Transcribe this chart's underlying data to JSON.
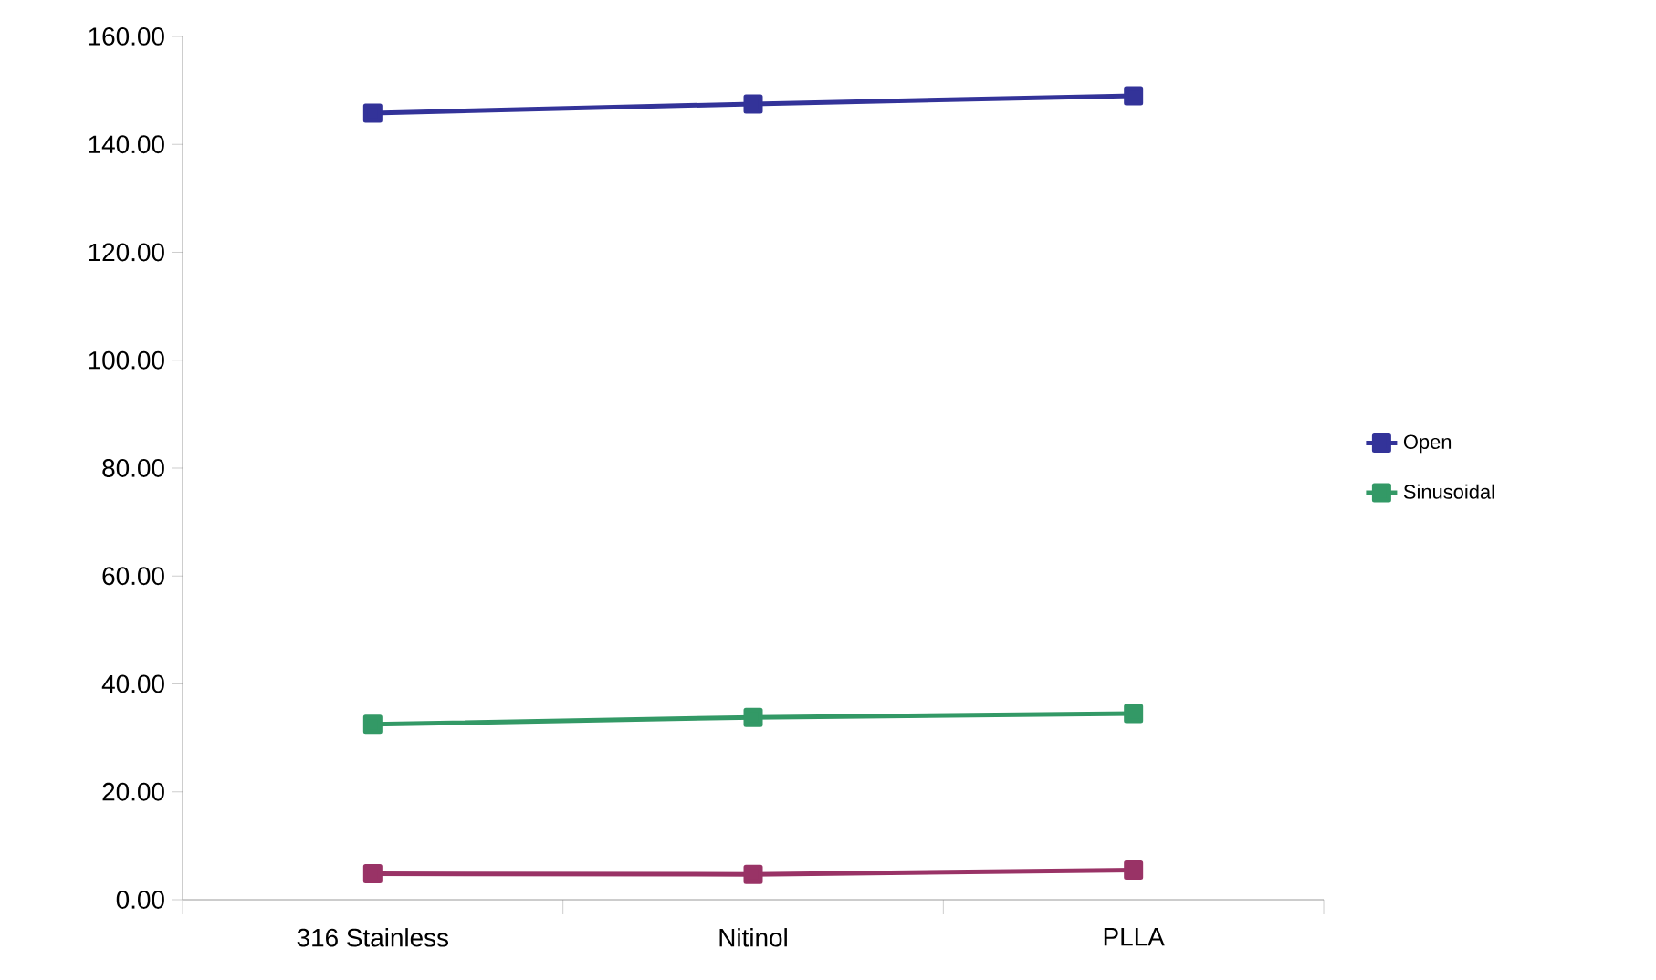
{
  "chart_data": {
    "type": "line",
    "categories": [
      "316 Stainless",
      "Nitinol",
      "PLLA"
    ],
    "series": [
      {
        "name": "Open",
        "color": "#333399",
        "values": [
          145.8,
          147.5,
          149.0
        ]
      },
      {
        "color": "#993366",
        "values": [
          4.8,
          4.7,
          5.5
        ]
      },
      {
        "name": "Sinusoidal",
        "color": "#339966",
        "values": [
          32.5,
          33.8,
          34.5
        ]
      }
    ],
    "ylim": [
      0,
      160
    ],
    "yticks": [
      {
        "value": 0,
        "label": "0.00"
      },
      {
        "value": 20,
        "label": "20.00"
      },
      {
        "value": 40,
        "label": "40.00"
      },
      {
        "value": 60,
        "label": "60.00"
      },
      {
        "value": 80,
        "label": "80.00"
      },
      {
        "value": 100,
        "label": "100.00"
      },
      {
        "value": 120,
        "label": "120.00"
      },
      {
        "value": 140,
        "label": "140.00"
      },
      {
        "value": 160,
        "label": "160.00"
      }
    ],
    "grid": false,
    "legend": "right",
    "marker": "square",
    "line_style": "solid"
  }
}
